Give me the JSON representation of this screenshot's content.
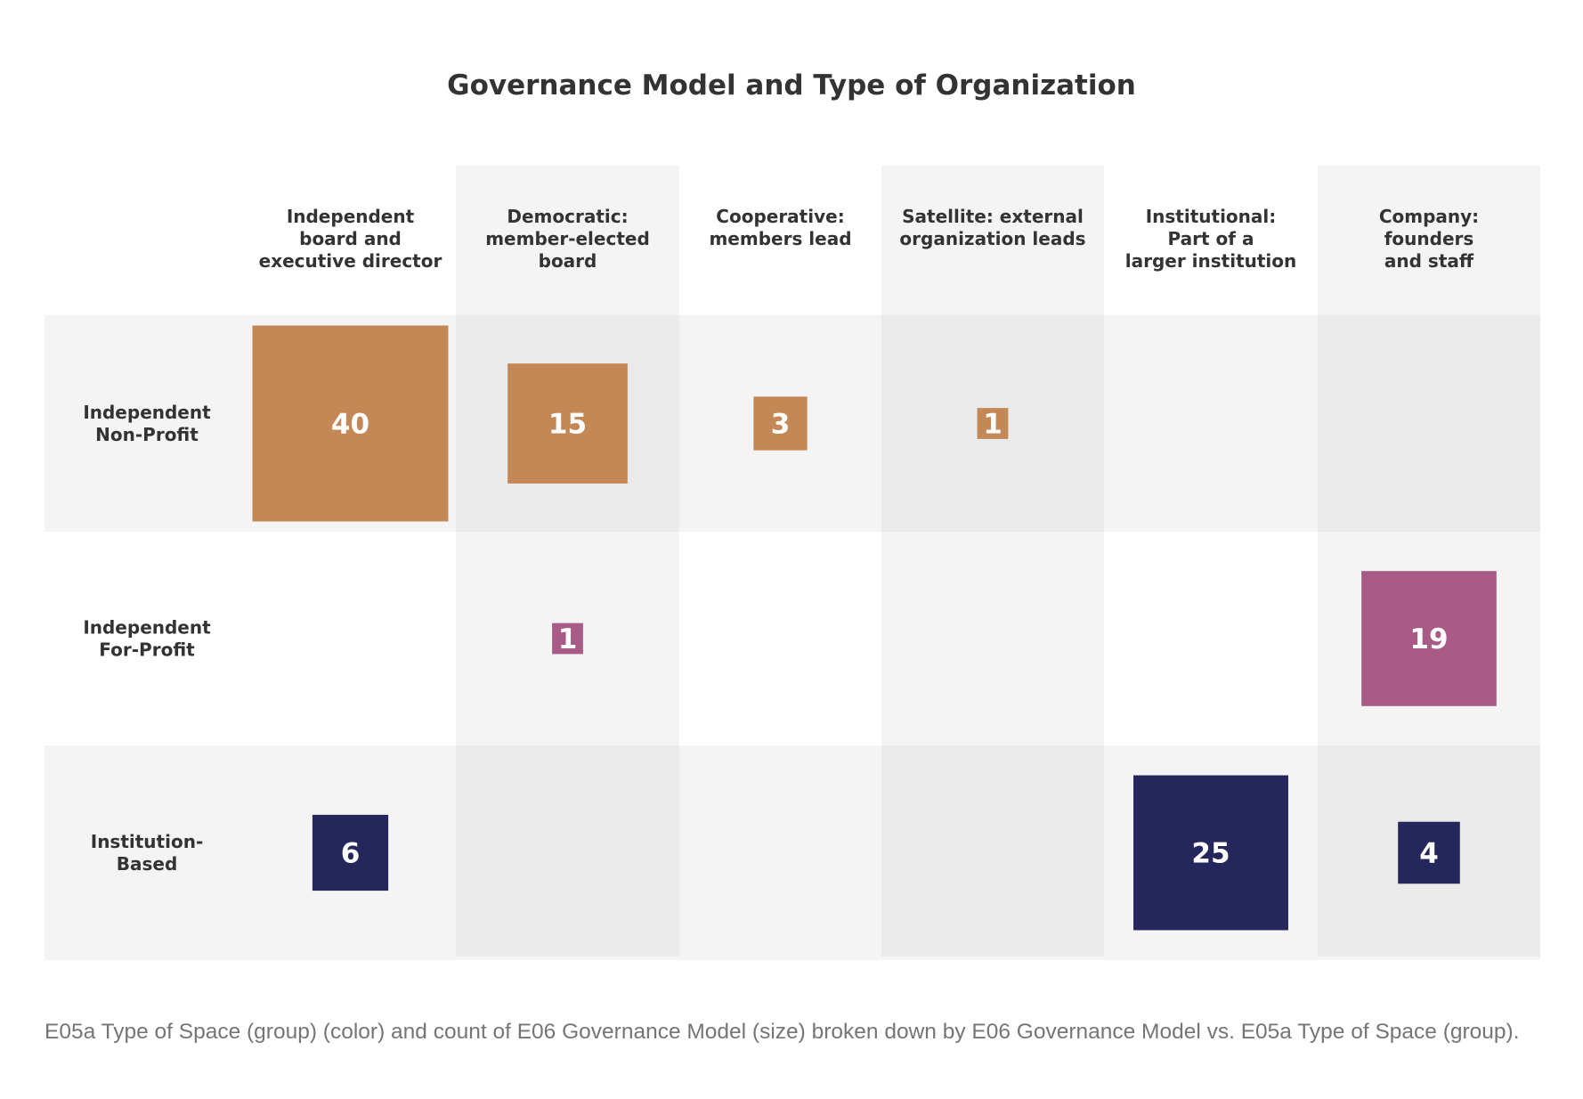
{
  "chart_data": {
    "type": "heatmap",
    "title": "Governance Model and Type of Organization",
    "caption": "E05a Type of Space (group) (color) and count of E06 Governance Model (size) broken down by E06 Governance Model vs. E05a Type of Space (group).",
    "columns": [
      {
        "lines": [
          "Independent",
          "board and",
          "executive director"
        ]
      },
      {
        "lines": [
          "Democratic:",
          "member-elected",
          "board"
        ]
      },
      {
        "lines": [
          "Cooperative:",
          "members lead"
        ]
      },
      {
        "lines": [
          "Satellite: external",
          "organization leads"
        ]
      },
      {
        "lines": [
          "Institutional:",
          "Part of a",
          "larger institution"
        ]
      },
      {
        "lines": [
          "Company:",
          "founders",
          "and staff"
        ]
      }
    ],
    "rows": [
      {
        "lines": [
          "Independent",
          "Non-Profit"
        ],
        "color": "#C48856"
      },
      {
        "lines": [
          "Independent",
          "For-Profit"
        ],
        "color": "#A85B86"
      },
      {
        "lines": [
          "Institution-",
          "Based"
        ],
        "color": "#25275C"
      }
    ],
    "values": [
      [
        40,
        15,
        3,
        1,
        null,
        null
      ],
      [
        null,
        1,
        null,
        null,
        null,
        19
      ],
      [
        6,
        null,
        null,
        null,
        25,
        4
      ]
    ],
    "max_value": 40
  }
}
